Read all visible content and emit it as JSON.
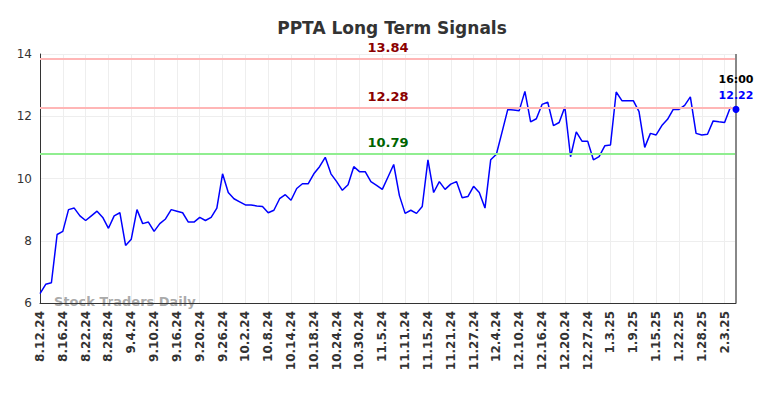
{
  "chart_data": {
    "type": "line",
    "title": "PPTA Long Term Signals",
    "watermark": "Stock Traders Daily",
    "categories": [
      "8.12.24",
      null,
      null,
      null,
      "8.16.24",
      null,
      null,
      null,
      "8.22.24",
      null,
      null,
      null,
      "8.28.24",
      null,
      null,
      null,
      "9.4.24",
      null,
      null,
      null,
      "9.10.24",
      null,
      null,
      null,
      "9.16.24",
      null,
      null,
      null,
      "9.20.24",
      null,
      null,
      null,
      "9.26.24",
      null,
      null,
      null,
      "10.2.24",
      null,
      null,
      null,
      "10.8.24",
      null,
      null,
      null,
      "10.14.24",
      null,
      null,
      null,
      "10.18.24",
      null,
      null,
      null,
      "10.24.24",
      null,
      null,
      null,
      "10.30.24",
      null,
      null,
      null,
      "11.5.24",
      null,
      null,
      null,
      "11.11.24",
      null,
      null,
      null,
      "11.15.24",
      null,
      null,
      null,
      "11.21.24",
      null,
      null,
      null,
      "11.27.24",
      null,
      null,
      null,
      "12.4.24",
      null,
      null,
      null,
      "12.10.24",
      null,
      null,
      null,
      "12.16.24",
      null,
      null,
      null,
      "12.20.24",
      null,
      null,
      null,
      "12.27.24",
      null,
      null,
      null,
      "1.3.25",
      null,
      null,
      null,
      "1.9.25",
      null,
      null,
      null,
      "1.15.25",
      null,
      null,
      null,
      "1.22.25",
      null,
      null,
      null,
      "1.28.25",
      null,
      null,
      null,
      "2.3.25",
      null,
      null
    ],
    "series": [
      {
        "name": "PPTA",
        "color": "#0000ff",
        "values": [
          6.3,
          6.6,
          6.65,
          8.2,
          8.3,
          9.0,
          9.05,
          8.8,
          8.65,
          8.8,
          8.95,
          8.75,
          8.4,
          8.8,
          8.9,
          7.85,
          8.05,
          9.0,
          8.55,
          8.6,
          8.3,
          8.55,
          8.7,
          9.0,
          8.95,
          8.9,
          8.6,
          8.6,
          8.75,
          8.65,
          8.75,
          9.05,
          10.15,
          9.55,
          9.35,
          9.25,
          9.15,
          9.15,
          9.12,
          9.1,
          8.9,
          8.98,
          9.35,
          9.48,
          9.3,
          9.68,
          9.83,
          9.83,
          10.15,
          10.38,
          10.68,
          10.15,
          9.9,
          9.62,
          9.8,
          10.38,
          10.22,
          10.22,
          9.9,
          9.78,
          9.65,
          10.05,
          10.45,
          9.45,
          8.88,
          8.98,
          8.88,
          9.1,
          10.6,
          9.55,
          9.9,
          9.65,
          9.82,
          9.9,
          9.38,
          9.42,
          9.75,
          9.55,
          9.05,
          10.6,
          10.78,
          11.5,
          12.22,
          12.2,
          12.18,
          12.8,
          11.82,
          11.92,
          12.38,
          12.45,
          11.7,
          11.8,
          12.3,
          10.7,
          11.5,
          11.2,
          11.2,
          10.6,
          10.7,
          11.05,
          11.08,
          12.78,
          12.5,
          12.5,
          12.5,
          12.15,
          11.0,
          11.45,
          11.4,
          11.7,
          11.9,
          12.22,
          12.22,
          12.35,
          12.62,
          11.45,
          11.4,
          11.42,
          11.85,
          11.82,
          11.8,
          12.28,
          12.22
        ]
      }
    ],
    "ylim": [
      6,
      14
    ],
    "yticks": [
      6,
      8,
      10,
      12,
      14
    ],
    "grid": true,
    "reference_lines": [
      {
        "value": 13.84,
        "color": "#ffb6b6",
        "label_color": "#8b0000"
      },
      {
        "value": 12.28,
        "color": "#ffb6b6",
        "label_color": "#8b0000"
      },
      {
        "value": 10.79,
        "color": "#90ee90",
        "label_color": "#006400"
      }
    ],
    "last": {
      "time": "16:00",
      "value": 12.22,
      "time_color": "#000000",
      "value_color": "#0000ff",
      "line_color": "#888888"
    }
  }
}
